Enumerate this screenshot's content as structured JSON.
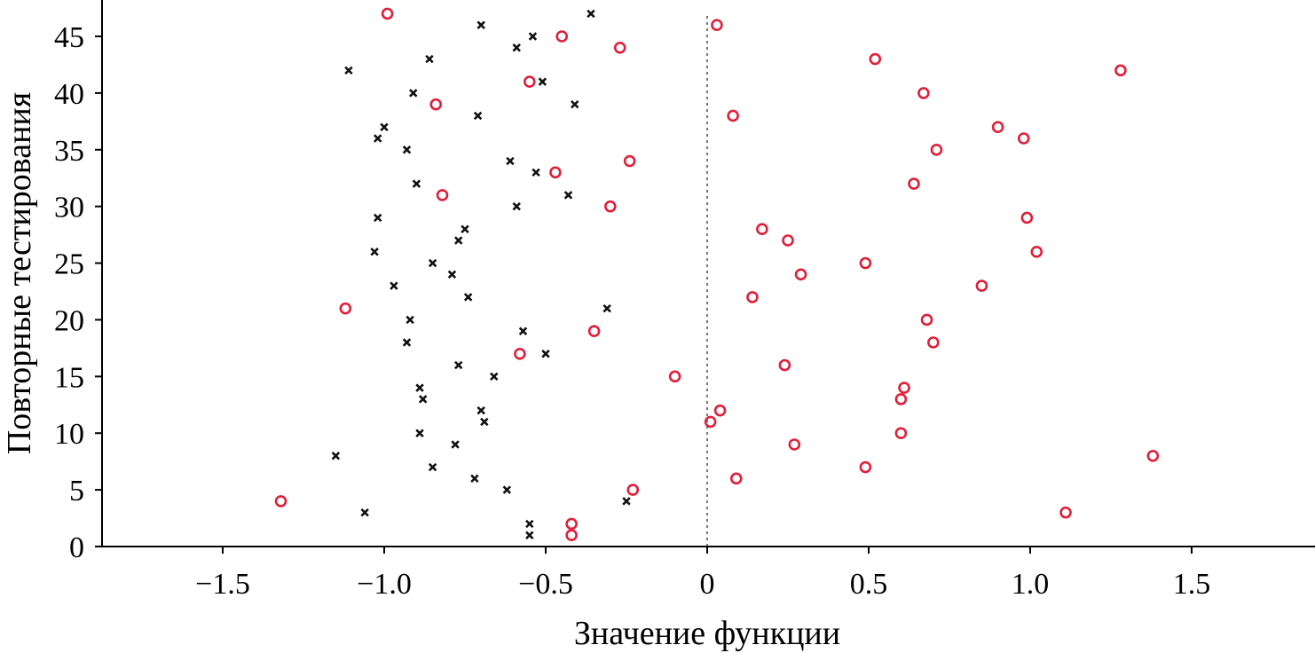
{
  "chart_data": {
    "type": "scatter",
    "title": "",
    "xlabel": "Значение функции",
    "ylabel": "Повторные тестирования",
    "xlim": [
      -1.9,
      1.9
    ],
    "ylim": [
      0,
      47
    ],
    "xticks": [
      -1.5,
      -1.0,
      -0.5,
      0,
      0.5,
      1.0,
      1.5
    ],
    "xtick_labels": [
      "−1.5",
      "−1.0",
      "−0.5",
      "0",
      "0.5",
      "1.0",
      "1.5"
    ],
    "yticks": [
      0,
      5,
      10,
      15,
      20,
      25,
      30,
      35,
      40,
      45
    ],
    "ytick_labels": [
      "0",
      "5",
      "10",
      "15",
      "20",
      "25",
      "30",
      "35",
      "40",
      "45"
    ],
    "grid": false,
    "legend": "none",
    "reference_line": {
      "x": 0,
      "style": "dotted"
    },
    "series": [
      {
        "marker": "x",
        "color": "#111111",
        "points": [
          {
            "x": -0.55,
            "y": 1
          },
          {
            "x": -0.55,
            "y": 2
          },
          {
            "x": -1.06,
            "y": 3
          },
          {
            "x": -0.25,
            "y": 4
          },
          {
            "x": -0.62,
            "y": 5
          },
          {
            "x": -0.72,
            "y": 6
          },
          {
            "x": -0.85,
            "y": 7
          },
          {
            "x": -1.15,
            "y": 8
          },
          {
            "x": -0.78,
            "y": 9
          },
          {
            "x": -0.89,
            "y": 10
          },
          {
            "x": -0.69,
            "y": 11
          },
          {
            "x": -0.7,
            "y": 12
          },
          {
            "x": -0.88,
            "y": 13
          },
          {
            "x": -0.89,
            "y": 14
          },
          {
            "x": -0.66,
            "y": 15
          },
          {
            "x": -0.77,
            "y": 16
          },
          {
            "x": -0.5,
            "y": 17
          },
          {
            "x": -0.93,
            "y": 18
          },
          {
            "x": -0.57,
            "y": 19
          },
          {
            "x": -0.92,
            "y": 20
          },
          {
            "x": -0.31,
            "y": 21
          },
          {
            "x": -0.74,
            "y": 22
          },
          {
            "x": -0.97,
            "y": 23
          },
          {
            "x": -0.79,
            "y": 24
          },
          {
            "x": -0.85,
            "y": 25
          },
          {
            "x": -1.03,
            "y": 26
          },
          {
            "x": -0.77,
            "y": 27
          },
          {
            "x": -0.75,
            "y": 28
          },
          {
            "x": -1.02,
            "y": 29
          },
          {
            "x": -0.59,
            "y": 30
          },
          {
            "x": -0.43,
            "y": 31
          },
          {
            "x": -0.9,
            "y": 32
          },
          {
            "x": -0.53,
            "y": 33
          },
          {
            "x": -0.61,
            "y": 34
          },
          {
            "x": -0.93,
            "y": 35
          },
          {
            "x": -1.02,
            "y": 36
          },
          {
            "x": -1.0,
            "y": 37
          },
          {
            "x": -0.71,
            "y": 38
          },
          {
            "x": -0.41,
            "y": 39
          },
          {
            "x": -0.91,
            "y": 40
          },
          {
            "x": -0.51,
            "y": 41
          },
          {
            "x": -1.11,
            "y": 42
          },
          {
            "x": -0.86,
            "y": 43
          },
          {
            "x": -0.59,
            "y": 44
          },
          {
            "x": -0.54,
            "y": 45
          },
          {
            "x": -0.7,
            "y": 46
          },
          {
            "x": -0.36,
            "y": 47
          }
        ]
      },
      {
        "marker": "o",
        "color": "#e0203a",
        "points": [
          {
            "x": -0.42,
            "y": 1
          },
          {
            "x": -0.42,
            "y": 2
          },
          {
            "x": 1.11,
            "y": 3
          },
          {
            "x": -1.32,
            "y": 4
          },
          {
            "x": -0.23,
            "y": 5
          },
          {
            "x": 0.09,
            "y": 6
          },
          {
            "x": 0.49,
            "y": 7
          },
          {
            "x": 1.38,
            "y": 8
          },
          {
            "x": 0.27,
            "y": 9
          },
          {
            "x": 0.6,
            "y": 10
          },
          {
            "x": 0.01,
            "y": 11
          },
          {
            "x": 0.04,
            "y": 12
          },
          {
            "x": 0.6,
            "y": 13
          },
          {
            "x": 0.61,
            "y": 14
          },
          {
            "x": -0.1,
            "y": 15
          },
          {
            "x": 0.24,
            "y": 16
          },
          {
            "x": -0.58,
            "y": 17
          },
          {
            "x": 0.7,
            "y": 18
          },
          {
            "x": -0.35,
            "y": 19
          },
          {
            "x": 0.68,
            "y": 20
          },
          {
            "x": -1.12,
            "y": 21
          },
          {
            "x": 0.14,
            "y": 22
          },
          {
            "x": 0.85,
            "y": 23
          },
          {
            "x": 0.29,
            "y": 24
          },
          {
            "x": 0.49,
            "y": 25
          },
          {
            "x": 1.02,
            "y": 26
          },
          {
            "x": 0.25,
            "y": 27
          },
          {
            "x": 0.17,
            "y": 28
          },
          {
            "x": 0.99,
            "y": 29
          },
          {
            "x": -0.3,
            "y": 30
          },
          {
            "x": -0.82,
            "y": 31
          },
          {
            "x": 0.64,
            "y": 32
          },
          {
            "x": -0.47,
            "y": 33
          },
          {
            "x": -0.24,
            "y": 34
          },
          {
            "x": 0.71,
            "y": 35
          },
          {
            "x": 0.98,
            "y": 36
          },
          {
            "x": 0.9,
            "y": 37
          },
          {
            "x": 0.08,
            "y": 38
          },
          {
            "x": -0.84,
            "y": 39
          },
          {
            "x": 0.67,
            "y": 40
          },
          {
            "x": -0.55,
            "y": 41
          },
          {
            "x": 1.28,
            "y": 42
          },
          {
            "x": 0.52,
            "y": 43
          },
          {
            "x": -0.27,
            "y": 44
          },
          {
            "x": -0.45,
            "y": 45
          },
          {
            "x": 0.03,
            "y": 46
          },
          {
            "x": -0.99,
            "y": 47
          }
        ]
      }
    ]
  }
}
